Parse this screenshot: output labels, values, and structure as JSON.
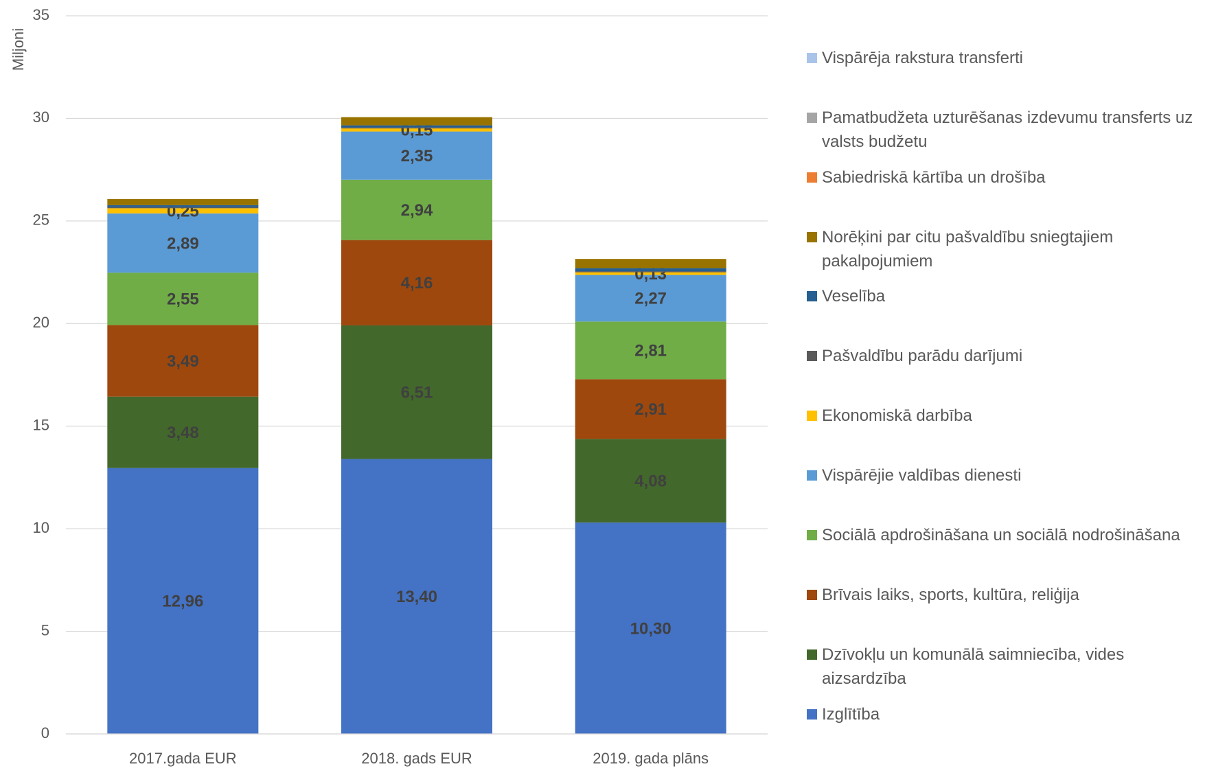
{
  "chart_data": {
    "type": "stacked_bar",
    "y_label": "Miljoni",
    "categories": [
      "2017.gada EUR",
      "2018. gads EUR",
      "2019. gada plāns"
    ],
    "ylim": [
      0,
      35
    ],
    "yticks": [
      0,
      5,
      10,
      15,
      20,
      25,
      30,
      35
    ],
    "grid": true,
    "legend": "right",
    "series": [
      {
        "name": "Izglītība",
        "color": "#4472c4",
        "values": [
          12.96,
          13.4,
          10.3
        ],
        "value_labels": [
          "12,96",
          "13,40",
          "10,30"
        ]
      },
      {
        "name": "Dzīvokļu un komunālā saimniecība, vides aizsardzība",
        "color": "#43682b",
        "values": [
          3.48,
          6.51,
          4.08
        ],
        "value_labels": [
          "3,48",
          "6,51",
          "4,08"
        ]
      },
      {
        "name": "Brīvais laiks, sports, kultūra, reliģija",
        "color": "#9e480e",
        "values": [
          3.49,
          4.16,
          2.91
        ],
        "value_labels": [
          "3,49",
          "4,16",
          "2,91"
        ]
      },
      {
        "name": "Sociālā apdrošināšana un sociālā nodrošināšana",
        "color": "#70ad47",
        "values": [
          2.55,
          2.94,
          2.81
        ],
        "value_labels": [
          "2,55",
          "2,94",
          "2,81"
        ]
      },
      {
        "name": "Vispārējie valdības dienesti",
        "color": "#5b9bd5",
        "values": [
          2.89,
          2.35,
          2.27
        ],
        "value_labels": [
          "2,89",
          "2,35",
          "2,27"
        ]
      },
      {
        "name": "Ekonomiskā darbība",
        "color": "#ffc000",
        "values": [
          0.25,
          0.15,
          0.13
        ],
        "value_labels": [
          "0,25",
          "0,15",
          "0,13"
        ]
      },
      {
        "name": "Pašvaldību parādu darījumi",
        "color": "#5a5a5a",
        "values": [
          0.05,
          0.05,
          0.05
        ]
      },
      {
        "name": " Veselība",
        "color": "#255e91",
        "values": [
          0.1,
          0.1,
          0.15
        ]
      },
      {
        "name": "Norēķini par citu pašvaldību  sniegtajiem pakalpojumiem",
        "color": "#997300",
        "values": [
          0.3,
          0.4,
          0.45
        ]
      },
      {
        "name": "Sabiedriskā kārtība un drošība",
        "color": "#ed7d31",
        "values": [
          0,
          0,
          0
        ]
      },
      {
        "name": "Pamatbudžeta uzturēšanas izdevumu transferts uz valsts budžetu",
        "color": "#a5a5a5",
        "values": [
          0,
          0,
          0
        ]
      },
      {
        "name": "Vispārēja rakstura transferti",
        "color": "#a9c4e8",
        "values": [
          0,
          0,
          0
        ]
      }
    ]
  }
}
